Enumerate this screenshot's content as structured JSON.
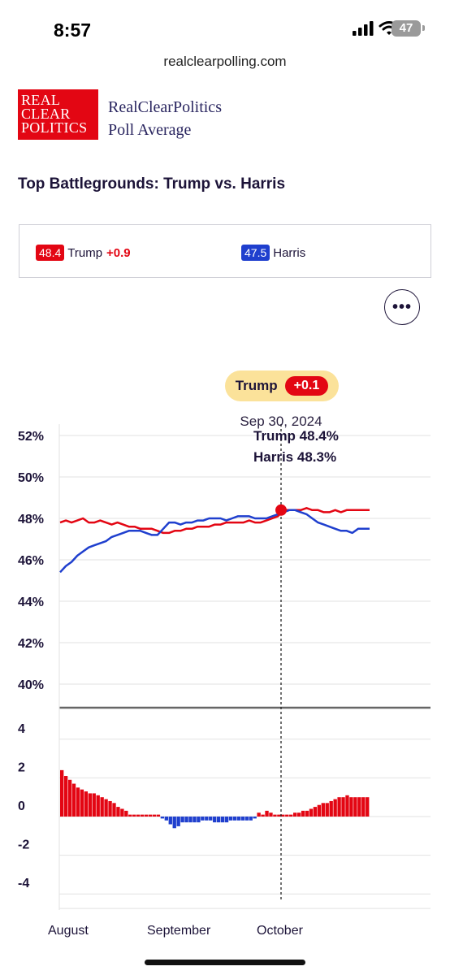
{
  "status": {
    "time": "8:57",
    "battery": "47"
  },
  "browser": {
    "url": "realclearpolling.com"
  },
  "header": {
    "logo_lines": [
      "REAL",
      "CLEAR",
      "POLITICS"
    ],
    "brand_line1": "RealClearPolitics",
    "brand_line2": "Poll Average"
  },
  "page_title": "Top Battlegrounds: Trump vs. Harris",
  "summary": {
    "trump": {
      "value": "48.4",
      "name": "Trump",
      "change": "+0.9",
      "color": "#e30613"
    },
    "harris": {
      "value": "47.5",
      "name": "Harris",
      "color": "#1f3fce"
    }
  },
  "more_icon": "ellipsis-icon",
  "tooltip": {
    "leader": "Trump",
    "lead": "+0.1",
    "date": "Sep 30, 2024",
    "trump_line": "Trump 48.4%",
    "harris_line": "Harris 48.3%"
  },
  "chart_data": [
    {
      "type": "line",
      "ylim": [
        40,
        52
      ],
      "y_ticks": [
        "52%",
        "50%",
        "48%",
        "46%",
        "44%",
        "42%",
        "40%"
      ],
      "x_labels": [
        "August",
        "September",
        "October"
      ],
      "series": [
        {
          "name": "Trump",
          "color": "#e30613",
          "values": [
            47.8,
            47.9,
            47.8,
            47.9,
            48.0,
            47.8,
            47.8,
            47.9,
            47.8,
            47.7,
            47.8,
            47.7,
            47.6,
            47.6,
            47.5,
            47.5,
            47.5,
            47.4,
            47.3,
            47.3,
            47.4,
            47.4,
            47.5,
            47.5,
            47.6,
            47.6,
            47.6,
            47.7,
            47.7,
            47.8,
            47.8,
            47.8,
            47.8,
            47.9,
            47.8,
            47.8,
            47.9,
            48.0,
            48.1,
            48.4,
            48.4,
            48.4,
            48.4,
            48.5,
            48.4,
            48.4,
            48.3,
            48.3,
            48.4,
            48.3,
            48.4,
            48.4,
            48.4,
            48.4,
            48.4
          ]
        },
        {
          "name": "Harris",
          "color": "#1f3fce",
          "values": [
            45.4,
            45.7,
            45.9,
            46.2,
            46.4,
            46.6,
            46.7,
            46.8,
            46.9,
            47.1,
            47.2,
            47.3,
            47.4,
            47.4,
            47.4,
            47.3,
            47.2,
            47.2,
            47.5,
            47.8,
            47.8,
            47.7,
            47.8,
            47.8,
            47.9,
            47.9,
            48.0,
            48.0,
            48.0,
            47.9,
            48.0,
            48.1,
            48.1,
            48.1,
            48.0,
            48.0,
            48.0,
            48.1,
            48.2,
            48.3,
            48.4,
            48.4,
            48.3,
            48.2,
            48.0,
            47.8,
            47.7,
            47.6,
            47.5,
            47.4,
            47.4,
            47.3,
            47.5,
            47.5,
            47.5
          ]
        }
      ],
      "marker_value": 48.4
    },
    {
      "type": "bar",
      "ylim": [
        -4.5,
        4.5
      ],
      "y_ticks": [
        "4",
        "2",
        "0",
        "-2",
        "-4"
      ],
      "pos_color": "#e30613",
      "neg_color": "#1f3fce",
      "values": [
        2.4,
        2.1,
        1.9,
        1.7,
        1.5,
        1.4,
        1.3,
        1.2,
        1.2,
        1.1,
        1.0,
        0.9,
        0.8,
        0.7,
        0.5,
        0.4,
        0.3,
        0.1,
        0.1,
        0.1,
        0.1,
        0.1,
        0.1,
        0.1,
        0.1,
        -0.1,
        -0.2,
        -0.4,
        -0.6,
        -0.5,
        -0.3,
        -0.3,
        -0.3,
        -0.3,
        -0.3,
        -0.2,
        -0.2,
        -0.2,
        -0.3,
        -0.3,
        -0.3,
        -0.3,
        -0.2,
        -0.2,
        -0.2,
        -0.2,
        -0.2,
        -0.2,
        -0.1,
        0.2,
        0.1,
        0.3,
        0.2,
        0.1,
        0.1,
        0.1,
        0.1,
        0.1,
        0.2,
        0.2,
        0.3,
        0.3,
        0.4,
        0.5,
        0.6,
        0.7,
        0.7,
        0.8,
        0.9,
        1.0,
        1.0,
        1.1,
        1.0,
        1.0,
        1.0,
        1.0,
        1.0
      ]
    }
  ]
}
